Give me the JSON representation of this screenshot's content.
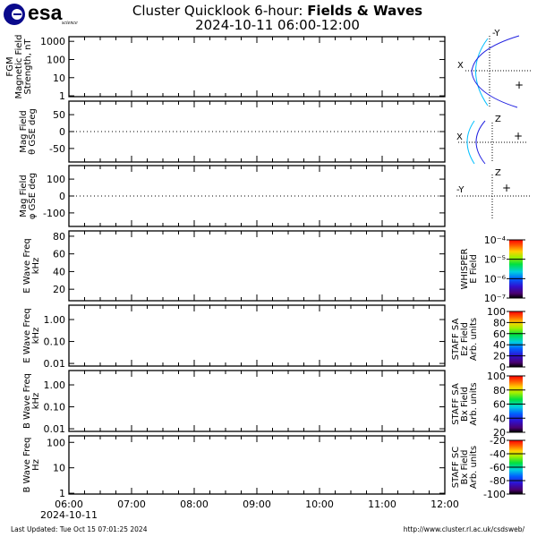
{
  "header": {
    "logo_text": "esa",
    "logo_subtext": "science",
    "title_prefix": "Cluster Quicklook 6-hour: ",
    "title_bold": "Fields & Waves",
    "subtitle": "2024-10-11 06:00-12:00"
  },
  "panels": [
    {
      "label": [
        "FGM",
        "Magnetic Field",
        "Strength, nT"
      ],
      "scale": "log",
      "ylim": [
        0.9,
        1800
      ],
      "ticks": [
        "1",
        "10",
        "100",
        "1000"
      ],
      "tickvals": [
        1,
        10,
        100,
        1000
      ],
      "zero_line": false
    },
    {
      "label": [
        "Mag Field",
        "θ GSE deg"
      ],
      "scale": "linear",
      "ylim": [
        -90,
        90
      ],
      "ticks": [
        "-50",
        "0",
        "50"
      ],
      "tickvals": [
        -50,
        0,
        50
      ],
      "zero_line": true
    },
    {
      "label": [
        "Mag Field",
        "φ GSE deg"
      ],
      "scale": "linear",
      "ylim": [
        -180,
        180
      ],
      "ticks": [
        "-100",
        "0",
        "100"
      ],
      "tickvals": [
        -100,
        0,
        100
      ],
      "zero_line": true
    },
    {
      "label": [
        "E Wave Freq",
        "kHz"
      ],
      "scale": "linear",
      "ylim": [
        7,
        86
      ],
      "ticks": [
        "20",
        "40",
        "60",
        "80"
      ],
      "tickvals": [
        20,
        40,
        60,
        80
      ],
      "zero_line": false
    },
    {
      "label": [
        "E Wave Freq",
        "kHz"
      ],
      "scale": "log",
      "ylim": [
        0.0076,
        4.5
      ],
      "ticks": [
        "0.01",
        "0.10",
        "1.00"
      ],
      "tickvals": [
        0.01,
        0.1,
        1
      ],
      "zero_line": false
    },
    {
      "label": [
        "B Wave Freq",
        "kHz"
      ],
      "scale": "log",
      "ylim": [
        0.0076,
        4.5
      ],
      "ticks": [
        "0.01",
        "0.10",
        "1.00"
      ],
      "tickvals": [
        0.01,
        0.1,
        1
      ],
      "zero_line": false
    },
    {
      "label": [
        "B Wave Freq",
        "Hz"
      ],
      "scale": "log",
      "ylim": [
        0.93,
        180
      ],
      "ticks": [
        "1",
        "10",
        "100"
      ],
      "tickvals": [
        1,
        10,
        100
      ],
      "zero_line": false
    }
  ],
  "time_axis": {
    "ticks": [
      "06:00",
      "07:00",
      "08:00",
      "09:00",
      "10:00",
      "11:00",
      "12:00"
    ],
    "date": "2024-10-11"
  },
  "colorbars": [
    {
      "label": [
        "WHISPER",
        "E Field"
      ],
      "ticks": [
        "10⁻⁷",
        "10⁻⁶",
        "10⁻⁵",
        "10⁻⁴"
      ],
      "scale": "log",
      "range": [
        -7,
        -4
      ],
      "tickvals": [
        -7,
        -6,
        -5,
        -4
      ]
    },
    {
      "label": [
        "STAFF SA",
        "Ez Field",
        "Arb. units"
      ],
      "ticks": [
        "0",
        "20",
        "40",
        "60",
        "80",
        "100"
      ],
      "scale": "linear",
      "range": [
        0,
        100
      ],
      "tickvals": [
        0,
        20,
        40,
        60,
        80,
        100
      ]
    },
    {
      "label": [
        "STAFF SA",
        "Bx Field",
        "Arb. units"
      ],
      "ticks": [
        "20",
        "40",
        "60",
        "80",
        "100"
      ],
      "scale": "linear",
      "range": [
        20,
        100
      ],
      "tickvals": [
        20,
        40,
        60,
        80,
        100
      ]
    },
    {
      "label": [
        "STAFF SC",
        "Bx Field",
        "Arb. units"
      ],
      "ticks": [
        "-100",
        "-80",
        "-60",
        "-40",
        "-20"
      ],
      "scale": "linear",
      "range": [
        -100,
        -20
      ],
      "tickvals": [
        -100,
        -80,
        -60,
        -40,
        -20
      ]
    }
  ],
  "orbit_plots": [
    {
      "h_axis": "X",
      "v_axis": "-Y"
    },
    {
      "h_axis": "X",
      "v_axis": "Z"
    },
    {
      "h_axis": "-Y",
      "v_axis": "Z"
    }
  ],
  "colors": {
    "magnetopause": "#00bfff",
    "bow_shock": "#2020e0"
  },
  "footer": {
    "last_updated": "Last Updated:  Tue Oct 15 07:01:25 2024",
    "url": "http://www.cluster.rl.ac.uk/csdsweb/"
  }
}
